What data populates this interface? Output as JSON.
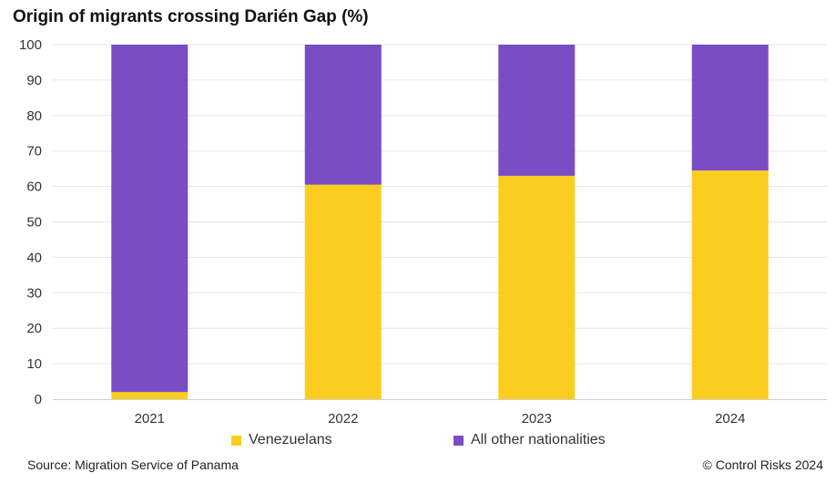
{
  "title": "Origin of migrants crossing Darién Gap (%)",
  "source": "Source: Migration Service of Panama",
  "copyright": "© Control Risks 2024",
  "colors": {
    "venezuelans": "#fccd21",
    "others": "#7b4dc4",
    "grid": "#e6e6e6",
    "axis": "#cfcfcf"
  },
  "chart_data": {
    "type": "bar",
    "stacked": true,
    "title": "Origin of migrants crossing Darién Gap (%)",
    "categories": [
      "2021",
      "2022",
      "2023",
      "2024"
    ],
    "series": [
      {
        "name": "Venezuelans",
        "values": [
          2,
          60.5,
          63,
          64.5
        ]
      },
      {
        "name": "All other nationalities",
        "values": [
          98,
          39.5,
          37,
          35.5
        ]
      }
    ],
    "yticks": [
      "0",
      "10",
      "20",
      "30",
      "40",
      "50",
      "60",
      "70",
      "80",
      "90",
      "100"
    ],
    "ylim": [
      0,
      100
    ],
    "xlabel": "",
    "ylabel": "",
    "grid": true,
    "legend": "bottom"
  }
}
